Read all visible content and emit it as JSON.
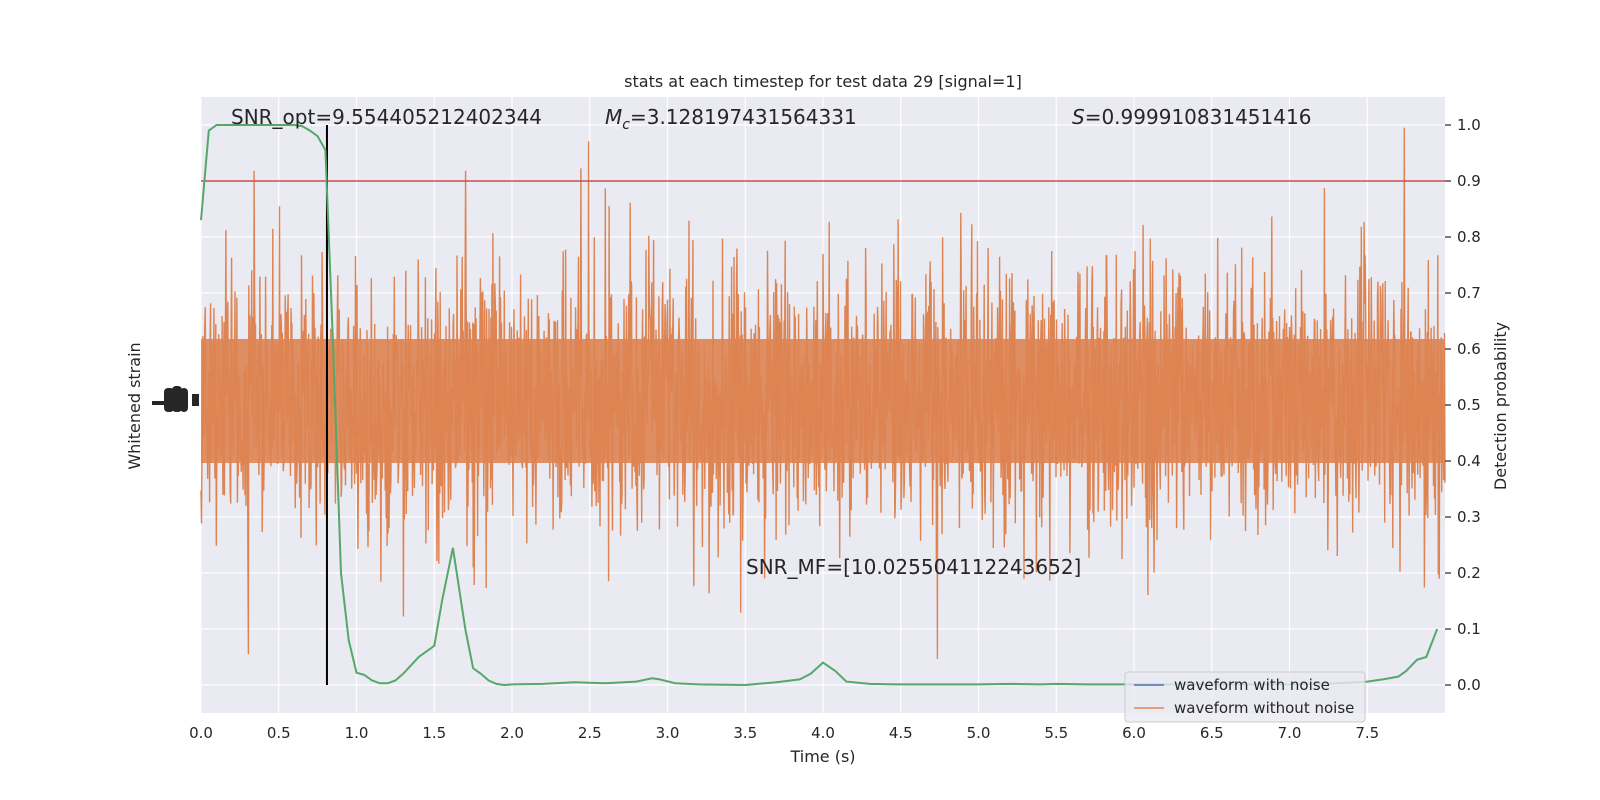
{
  "chart_data": {
    "type": "line",
    "title": "stats at each timestep for test data 29 [signal=1]",
    "xlabel": "Time (s)",
    "ylabel_left": "Whitened strain",
    "ylabel_right": "Detection probability",
    "xlim": [
      0.0,
      8.0
    ],
    "ylim_right": [
      -0.05,
      1.05
    ],
    "x_ticks": [
      0.0,
      0.5,
      1.0,
      1.5,
      2.0,
      2.5,
      3.0,
      3.5,
      4.0,
      4.5,
      5.0,
      5.5,
      6.0,
      6.5,
      7.0,
      7.5
    ],
    "x_tick_labels": [
      "0.0",
      "0.5",
      "1.0",
      "1.5",
      "2.0",
      "2.5",
      "3.0",
      "3.5",
      "4.0",
      "4.5",
      "5.0",
      "5.5",
      "6.0",
      "6.5",
      "7.0",
      "7.5"
    ],
    "y_right_ticks": [
      0.0,
      0.1,
      0.2,
      0.3,
      0.4,
      0.5,
      0.6,
      0.7,
      0.8,
      0.9,
      1.0
    ],
    "y_right_tick_labels": [
      "0.0",
      "0.1",
      "0.2",
      "0.3",
      "0.4",
      "0.5",
      "0.6",
      "0.7",
      "0.8",
      "0.9",
      "1.0"
    ],
    "threshold": 0.9,
    "marker_time": 0.81,
    "annotations": {
      "snr_opt": "SNR_opt=9.554405212402344",
      "mc": "=3.128197431564331",
      "mc_symbol": "M",
      "mc_sub": "c",
      "s": "=0.999910831451416",
      "s_symbol": "S",
      "snr_mf": "SNR_MF=[10.025504112243652]"
    },
    "legend": {
      "position": "lower-right",
      "entries": [
        "waveform with noise",
        "waveform without noise"
      ]
    },
    "detection_probability": {
      "name": "detection probability",
      "x": [
        0.0,
        0.05,
        0.1,
        0.15,
        0.2,
        0.3,
        0.4,
        0.5,
        0.6,
        0.65,
        0.7,
        0.75,
        0.8,
        0.85,
        0.9,
        0.95,
        1.0,
        1.05,
        1.1,
        1.15,
        1.2,
        1.25,
        1.3,
        1.35,
        1.4,
        1.5,
        1.55,
        1.62,
        1.7,
        1.75,
        1.8,
        1.85,
        1.9,
        1.95,
        2.0,
        2.2,
        2.4,
        2.6,
        2.8,
        2.9,
        2.95,
        3.05,
        3.2,
        3.5,
        3.7,
        3.85,
        3.92,
        4.0,
        4.08,
        4.15,
        4.3,
        4.5,
        5.0,
        5.2,
        5.4,
        5.5,
        5.7,
        6.0,
        6.5,
        7.0,
        7.3,
        7.5,
        7.6,
        7.7,
        7.75,
        7.82,
        7.88,
        7.95
      ],
      "values": [
        0.83,
        0.99,
        1.0,
        1.0,
        1.0,
        1.0,
        1.0,
        1.0,
        1.0,
        0.998,
        0.99,
        0.98,
        0.955,
        0.6,
        0.2,
        0.08,
        0.022,
        0.018,
        0.008,
        0.003,
        0.003,
        0.008,
        0.02,
        0.035,
        0.05,
        0.07,
        0.15,
        0.245,
        0.1,
        0.03,
        0.02,
        0.008,
        0.002,
        0.0,
        0.001,
        0.002,
        0.005,
        0.003,
        0.006,
        0.012,
        0.01,
        0.003,
        0.001,
        0.0,
        0.005,
        0.01,
        0.02,
        0.04,
        0.025,
        0.006,
        0.002,
        0.001,
        0.001,
        0.002,
        0.001,
        0.002,
        0.001,
        0.001,
        0.001,
        0.001,
        0.003,
        0.006,
        0.01,
        0.015,
        0.025,
        0.045,
        0.05,
        0.1
      ]
    },
    "series": [
      {
        "name": "waveform with noise",
        "color": "#4c72b0"
      },
      {
        "name": "waveform without noise",
        "color": "#dd8452"
      }
    ],
    "colors": {
      "background": "#eaeaf2",
      "grid": "#ffffff",
      "noise": "#dd8452",
      "probability": "#55a868",
      "threshold": "#c44e52",
      "marker": "#000000"
    }
  }
}
